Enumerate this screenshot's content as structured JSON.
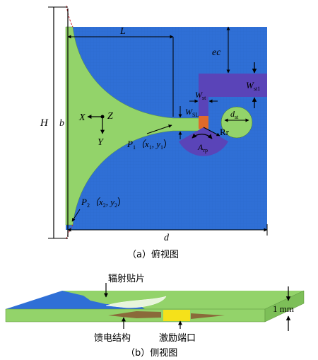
{
  "figure_a": {
    "caption": "（a）俯视图",
    "dim_H": "H",
    "dim_b": "b",
    "dim_L": "L",
    "dim_ec": "ec",
    "dim_d": "d",
    "dim_Wst1": "W",
    "dim_Wst1_sub": "st1",
    "dim_Wst": "W",
    "dim_Wst_sub": "st",
    "dim_WSL": "W",
    "dim_WSL_sub": "SL",
    "dim_dst": "d",
    "dim_dst_sub": "st",
    "dim_Rr": "Rr",
    "dim_Arp": "A",
    "dim_Arp_sub": "rp",
    "axis_x": "X",
    "axis_y": "Y",
    "axis_z": "Z",
    "point_p1": "P",
    "point_p1_sub": "1",
    "point_p1_coords": "（x",
    "point_p1_x_sub": "1",
    "point_p1_sep": ", y",
    "point_p1_y_sub": "1",
    "point_p1_close": "）",
    "point_p2": "P",
    "point_p2_sub": "2",
    "point_p2_coords": "（x",
    "point_p2_x_sub": "2",
    "point_p2_sep": ", y",
    "point_p2_y_sub": "2",
    "point_p2_close": "）"
  },
  "figure_b": {
    "caption": "（b）侧视图",
    "label_patch": "辐射贴片",
    "label_feed": "馈电结构",
    "label_port": "激励端口",
    "label_thickness": "1 mm"
  },
  "colors": {
    "substrate_blue": "#2f6fd6",
    "patch_green": "#93d36a",
    "feed_purple": "#5a44b8",
    "port_orange": "#e06a2a",
    "port_yellow": "#f5e11a",
    "feed_brown": "#8a6a3a"
  }
}
